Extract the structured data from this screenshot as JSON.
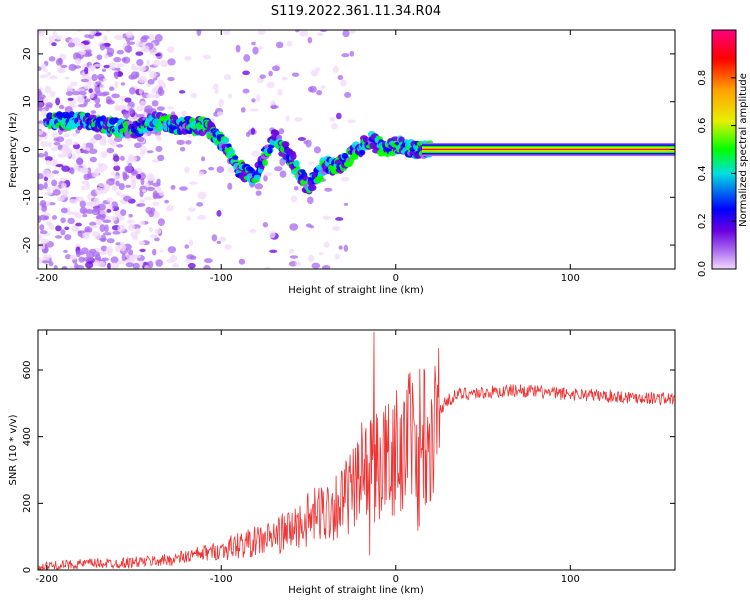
{
  "title": "S119.2022.361.11.34.R04",
  "chart_data": [
    {
      "type": "heatmap",
      "xlabel": "Height of straight line (km)",
      "ylabel": "Frequency (Hz)",
      "xlim": [
        -205,
        160
      ],
      "ylim": [
        -25,
        25
      ],
      "xticks": [
        -200,
        -100,
        0,
        100
      ],
      "yticks": [
        -20,
        -10,
        0,
        10,
        20
      ],
      "grid": false,
      "colorbar": {
        "label": "Normalized spectral amplitude",
        "range": [
          0.0,
          1.0
        ],
        "ticks": [
          0.0,
          0.2,
          0.4,
          0.6,
          0.8
        ],
        "colormap": [
          "#f2d9fb",
          "#a868f0",
          "#6a00e0",
          "#0000ff",
          "#00e0e0",
          "#00ff00",
          "#e8f000",
          "#ffa000",
          "#ff0000",
          "#ff0080"
        ]
      },
      "ridge": {
        "x": [
          -200,
          -185,
          -175,
          -165,
          -150,
          -140,
          -125,
          -110,
          -100,
          -90,
          -80,
          -70,
          -60,
          -50,
          -40,
          -35,
          -25,
          -15,
          -10,
          -5,
          0,
          10,
          20,
          40,
          80,
          120,
          160
        ],
        "y": [
          6,
          6,
          6,
          5,
          4,
          6,
          5,
          5,
          2,
          -4,
          -6,
          3,
          -2,
          -8,
          -3,
          -4,
          -1,
          2,
          1,
          0,
          1,
          0,
          0,
          0,
          0,
          0,
          0
        ]
      }
    },
    {
      "type": "line",
      "xlabel": "Height of straight line (km)",
      "ylabel": "SNR (10 * v/v)",
      "xlim": [
        -205,
        160
      ],
      "ylim": [
        0,
        720
      ],
      "xticks": [
        -200,
        -100,
        0,
        100
      ],
      "yticks": [
        0,
        200,
        400,
        600
      ],
      "grid": false,
      "series": [
        {
          "color": "#ee3333",
          "x": [
            -205,
            -190,
            -175,
            -160,
            -145,
            -130,
            -115,
            -100,
            -90,
            -80,
            -70,
            -60,
            -50,
            -40,
            -30,
            -20,
            -15,
            -10,
            -5,
            0,
            5,
            10,
            15,
            20,
            25,
            30,
            35,
            40,
            50,
            60,
            70,
            80,
            90,
            100,
            110,
            120,
            130,
            140,
            150,
            160
          ],
          "y": [
            10,
            15,
            20,
            20,
            25,
            30,
            45,
            60,
            75,
            85,
            100,
            120,
            150,
            180,
            210,
            260,
            300,
            320,
            330,
            360,
            380,
            400,
            420,
            440,
            480,
            510,
            525,
            530,
            532,
            535,
            540,
            535,
            530,
            528,
            526,
            522,
            520,
            518,
            515,
            512
          ]
        }
      ]
    }
  ]
}
